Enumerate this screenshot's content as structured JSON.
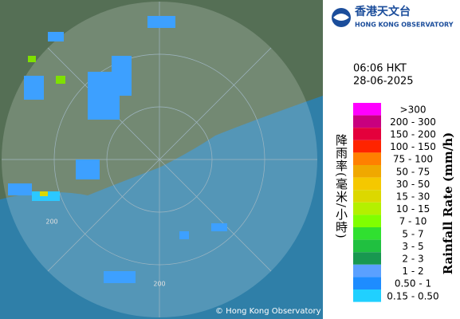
{
  "header": {
    "logo_chinese": "香港天文台",
    "logo_english": "HONG KONG OBSERVATORY"
  },
  "timestamp": {
    "time": "06:06 HKT",
    "date": "28-06-2025"
  },
  "legend": {
    "title_chinese": "降雨率(毫米/小時)",
    "title_english": "Rainfall Rate (mm/h)",
    "items": [
      {
        "label": ">300",
        "color": "#ff00ff"
      },
      {
        "label": "200 - 300",
        "color": "#c8007f"
      },
      {
        "label": "150 - 200",
        "color": "#e4003c"
      },
      {
        "label": "100 - 150",
        "color": "#ff2400"
      },
      {
        "label": "75 - 100",
        "color": "#ff8000"
      },
      {
        "label": "50 - 75",
        "color": "#f0a800"
      },
      {
        "label": "30 - 50",
        "color": "#f5c800"
      },
      {
        "label": "15 - 30",
        "color": "#dcd800"
      },
      {
        "label": "10 - 15",
        "color": "#b4f000"
      },
      {
        "label": "7 - 10",
        "color": "#80ff00"
      },
      {
        "label": "5 - 7",
        "color": "#30e030"
      },
      {
        "label": "3 - 5",
        "color": "#20c040"
      },
      {
        "label": "2 - 3",
        "color": "#189850"
      },
      {
        "label": "1 - 2",
        "color": "#5aa0ff"
      },
      {
        "label": "0.50 - 1",
        "color": "#1e8cff"
      },
      {
        "label": "0.15 - 0.50",
        "color": "#20d0ff"
      }
    ]
  },
  "map": {
    "range_labels": [
      "200",
      "200"
    ],
    "copyright": "© Hong Kong Observatory"
  }
}
